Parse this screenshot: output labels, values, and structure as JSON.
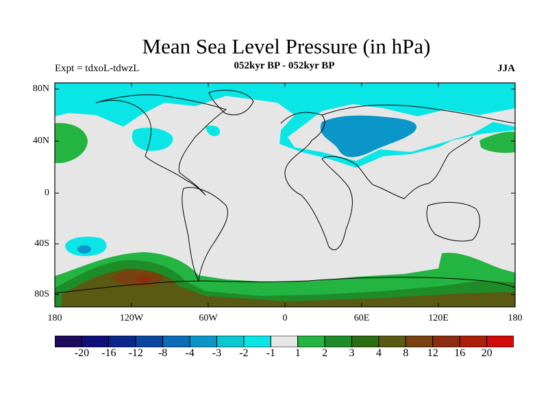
{
  "plot": {
    "title": "Mean Sea Level Pressure (in hPa)",
    "left_subtitle": "Expt = tdxoL-tdwzL",
    "center_subtitle": "052kyr BP - 052kyr BP",
    "right_subtitle": "JJA"
  },
  "axes": {
    "lat_ticks": [
      "80N",
      "40N",
      "0",
      "40S",
      "80S"
    ],
    "lon_ticks": [
      "180",
      "120W",
      "60W",
      "0",
      "60E",
      "120E",
      "180"
    ]
  },
  "legend": {
    "colors": [
      "#1d0a5a",
      "#0f0f78",
      "#0a288c",
      "#0a46a0",
      "#0a6eb4",
      "#0a96c8",
      "#0ac8d2",
      "#0ae6e6",
      "#e6e6e6",
      "#23b441",
      "#1e8c28",
      "#2d6e14",
      "#5a5a14",
      "#78410f",
      "#8c2d0f",
      "#aa1e0a",
      "#d20a0a"
    ],
    "labels": [
      "-20",
      "-16",
      "-12",
      "-8",
      "-4",
      "-3",
      "-2",
      "-1",
      "1",
      "2",
      "3",
      "4",
      "8",
      "12",
      "16",
      "20"
    ]
  },
  "map_colors": {
    "background": "#e6e6e6",
    "cyan": "#0ae6e6",
    "blue": "#0a96c8",
    "lightgreen": "#23b441",
    "green": "#1e8c28",
    "olive": "#5a5a14",
    "brown": "#78410f"
  }
}
